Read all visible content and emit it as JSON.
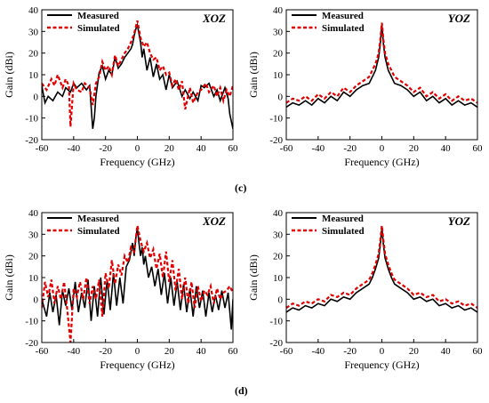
{
  "captions": {
    "c": "(c)",
    "d": "(d)"
  },
  "chart_data": [
    {
      "type": "line",
      "id": "c-xoz",
      "title": "XOZ",
      "xlabel": "Frequency (GHz)",
      "ylabel": "Gain (dBi)",
      "xlim": [
        -60,
        60
      ],
      "ylim": [
        -20,
        40
      ],
      "xticks": [
        -60,
        -40,
        -20,
        0,
        20,
        40,
        60
      ],
      "yticks": [
        -20,
        -10,
        0,
        10,
        20,
        30,
        40
      ],
      "grid": false,
      "legend": "top-left",
      "series": [
        {
          "name": "Measured",
          "color": "#000000",
          "dash": "solid",
          "x": [
            -60,
            -58,
            -56,
            -53,
            -50,
            -47,
            -45,
            -42,
            -40,
            -38,
            -35,
            -32,
            -30,
            -28,
            -27,
            -26,
            -24,
            -22,
            -20,
            -18,
            -16,
            -14,
            -12,
            -10,
            -8,
            -6,
            -4,
            -3,
            -2,
            -1,
            0,
            1,
            2,
            3,
            4,
            6,
            8,
            10,
            12,
            14,
            16,
            18,
            20,
            22,
            25,
            28,
            30,
            33,
            35,
            38,
            40,
            42,
            45,
            48,
            50,
            52,
            55,
            57,
            58,
            60
          ],
          "y": [
            5,
            -3,
            0,
            -2,
            2,
            0,
            4,
            2,
            6,
            4,
            6,
            3,
            5,
            -15,
            -10,
            0,
            11,
            14,
            8,
            12,
            10,
            18,
            13,
            15,
            18,
            20,
            22,
            24,
            28,
            31,
            33,
            29,
            25,
            18,
            22,
            12,
            18,
            9,
            15,
            8,
            10,
            3,
            10,
            4,
            7,
            0,
            3,
            -1,
            2,
            -2,
            5,
            4,
            6,
            0,
            3,
            -2,
            4,
            -1,
            -8,
            -15
          ]
        },
        {
          "name": "Simulated",
          "color": "#e00000",
          "dash": "dashed",
          "x": [
            -60,
            -57,
            -54,
            -52,
            -50,
            -47,
            -45,
            -43,
            -42,
            -40,
            -38,
            -35,
            -33,
            -30,
            -28,
            -26,
            -24,
            -22,
            -20,
            -18,
            -16,
            -14,
            -12,
            -10,
            -8,
            -6,
            -4,
            -2,
            0,
            2,
            4,
            6,
            8,
            10,
            12,
            14,
            16,
            18,
            20,
            22,
            24,
            26,
            28,
            30,
            33,
            35,
            38,
            40,
            43,
            45,
            48,
            50,
            52,
            54,
            56,
            58,
            60
          ],
          "y": [
            6,
            3,
            8,
            5,
            10,
            4,
            8,
            5,
            -14,
            6,
            3,
            2,
            6,
            4,
            -4,
            6,
            9,
            16,
            12,
            14,
            10,
            19,
            14,
            17,
            20,
            22,
            25,
            29,
            35,
            27,
            23,
            25,
            20,
            17,
            18,
            12,
            14,
            10,
            11,
            5,
            8,
            3,
            7,
            -6,
            4,
            -3,
            2,
            3,
            6,
            2,
            5,
            0,
            4,
            -2,
            3,
            0,
            5
          ]
        }
      ]
    },
    {
      "type": "line",
      "id": "c-yoz",
      "title": "YOZ",
      "xlabel": "Frequency (GHz)",
      "ylabel": "Gain (dBi)",
      "xlim": [
        -60,
        60
      ],
      "ylim": [
        -20,
        40
      ],
      "xticks": [
        -60,
        -40,
        -20,
        0,
        20,
        40,
        60
      ],
      "yticks": [
        -20,
        -10,
        0,
        10,
        20,
        30,
        40
      ],
      "grid": false,
      "legend": "top-left",
      "series": [
        {
          "name": "Measured",
          "color": "#000000",
          "dash": "solid",
          "x": [
            -60,
            -56,
            -52,
            -48,
            -44,
            -40,
            -36,
            -32,
            -28,
            -24,
            -20,
            -16,
            -12,
            -8,
            -6,
            -4,
            -2,
            -1,
            0,
            1,
            2,
            4,
            6,
            8,
            12,
            16,
            20,
            24,
            28,
            32,
            36,
            40,
            44,
            48,
            52,
            56,
            60
          ],
          "y": [
            -5,
            -3,
            -4,
            -2,
            -4,
            -1,
            -3,
            0,
            -2,
            2,
            0,
            3,
            5,
            6,
            9,
            12,
            18,
            24,
            33,
            24,
            18,
            12,
            9,
            6,
            5,
            3,
            0,
            2,
            -2,
            0,
            -3,
            -1,
            -4,
            -2,
            -4,
            -3,
            -5
          ]
        },
        {
          "name": "Simulated",
          "color": "#e00000",
          "dash": "dashed",
          "x": [
            -60,
            -56,
            -52,
            -48,
            -44,
            -40,
            -36,
            -32,
            -28,
            -24,
            -20,
            -16,
            -12,
            -8,
            -6,
            -4,
            -2,
            -1,
            0,
            1,
            2,
            4,
            6,
            8,
            12,
            16,
            20,
            24,
            28,
            32,
            36,
            40,
            44,
            48,
            52,
            56,
            60
          ],
          "y": [
            -3,
            -1,
            -2,
            0,
            -2,
            1,
            -1,
            2,
            0,
            4,
            2,
            5,
            7,
            9,
            12,
            15,
            20,
            26,
            34,
            26,
            20,
            15,
            12,
            9,
            7,
            5,
            2,
            4,
            0,
            2,
            -1,
            1,
            -2,
            0,
            -2,
            -1,
            -3
          ]
        }
      ]
    },
    {
      "type": "line",
      "id": "d-xoz",
      "title": "XOZ",
      "xlabel": "Frequency (GHz)",
      "ylabel": "Gain (dBi)",
      "xlim": [
        -60,
        60
      ],
      "ylim": [
        -20,
        40
      ],
      "xticks": [
        -60,
        -40,
        -20,
        0,
        20,
        40,
        60
      ],
      "yticks": [
        -20,
        -10,
        0,
        10,
        20,
        30,
        40
      ],
      "grid": false,
      "legend": "top-left",
      "series": [
        {
          "name": "Measured",
          "color": "#000000",
          "dash": "solid",
          "x": [
            -60,
            -57,
            -55,
            -53,
            -51,
            -49,
            -47,
            -45,
            -43,
            -41,
            -39,
            -37,
            -35,
            -33,
            -31,
            -29,
            -27,
            -25,
            -23,
            -21,
            -19,
            -17,
            -15,
            -13,
            -11,
            -9,
            -7,
            -5,
            -4,
            -3,
            -2,
            -1,
            0,
            1,
            2,
            3,
            4,
            5,
            7,
            9,
            11,
            13,
            15,
            17,
            19,
            21,
            23,
            25,
            27,
            29,
            31,
            33,
            35,
            37,
            39,
            41,
            43,
            45,
            47,
            49,
            51,
            53,
            55,
            57,
            59,
            60
          ],
          "y": [
            0,
            -8,
            3,
            -6,
            2,
            -12,
            4,
            -3,
            5,
            -5,
            8,
            -6,
            3,
            -4,
            9,
            -10,
            6,
            -8,
            10,
            -7,
            9,
            -5,
            12,
            -3,
            10,
            -2,
            15,
            18,
            22,
            26,
            20,
            28,
            33,
            26,
            20,
            24,
            16,
            20,
            10,
            15,
            6,
            14,
            2,
            12,
            -2,
            10,
            -3,
            8,
            -5,
            7,
            -6,
            5,
            -8,
            6,
            -4,
            4,
            -8,
            3,
            -6,
            2,
            -5,
            4,
            -4,
            3,
            -14,
            0
          ]
        },
        {
          "name": "Simulated",
          "color": "#e00000",
          "dash": "dashed",
          "x": [
            -60,
            -58,
            -56,
            -54,
            -52,
            -50,
            -48,
            -46,
            -44,
            -42,
            -40,
            -38,
            -36,
            -34,
            -32,
            -30,
            -28,
            -26,
            -24,
            -22,
            -20,
            -18,
            -16,
            -14,
            -12,
            -10,
            -8,
            -6,
            -4,
            -2,
            0,
            2,
            4,
            6,
            8,
            10,
            12,
            14,
            16,
            18,
            20,
            22,
            24,
            26,
            28,
            30,
            32,
            34,
            36,
            38,
            40,
            42,
            44,
            46,
            48,
            50,
            52,
            54,
            56,
            58,
            60
          ],
          "y": [
            -4,
            8,
            1,
            9,
            -2,
            6,
            0,
            8,
            -5,
            -20,
            5,
            1,
            8,
            0,
            10,
            -2,
            6,
            0,
            9,
            -8,
            12,
            5,
            18,
            7,
            16,
            11,
            20,
            17,
            24,
            22,
            34,
            27,
            22,
            26,
            19,
            23,
            14,
            21,
            10,
            22,
            8,
            18,
            4,
            14,
            0,
            10,
            -2,
            8,
            -4,
            6,
            -1,
            4,
            2,
            6,
            -2,
            5,
            0,
            3,
            4,
            6,
            3
          ]
        }
      ]
    },
    {
      "type": "line",
      "id": "d-yoz",
      "title": "YOZ",
      "xlabel": "Frequency (GHz)",
      "ylabel": "Gain (dBi)",
      "xlim": [
        -60,
        60
      ],
      "ylim": [
        -20,
        40
      ],
      "xticks": [
        -60,
        -40,
        -20,
        0,
        20,
        40,
        60
      ],
      "yticks": [
        -20,
        -10,
        0,
        10,
        20,
        30,
        40
      ],
      "grid": false,
      "legend": "top-left",
      "series": [
        {
          "name": "Measured",
          "color": "#000000",
          "dash": "solid",
          "x": [
            -60,
            -56,
            -52,
            -48,
            -44,
            -40,
            -36,
            -32,
            -28,
            -24,
            -20,
            -16,
            -12,
            -8,
            -6,
            -4,
            -2,
            -1,
            0,
            1,
            2,
            4,
            6,
            8,
            12,
            16,
            20,
            24,
            28,
            32,
            36,
            40,
            44,
            48,
            52,
            56,
            60
          ],
          "y": [
            -6,
            -4,
            -5,
            -3,
            -4,
            -2,
            -3,
            0,
            -1,
            1,
            0,
            3,
            5,
            7,
            10,
            14,
            19,
            25,
            33,
            25,
            19,
            14,
            10,
            7,
            5,
            3,
            0,
            1,
            -1,
            0,
            -3,
            -2,
            -4,
            -3,
            -5,
            -4,
            -6
          ]
        },
        {
          "name": "Simulated",
          "color": "#e00000",
          "dash": "dashed",
          "x": [
            -60,
            -56,
            -52,
            -48,
            -44,
            -40,
            -36,
            -32,
            -28,
            -24,
            -20,
            -16,
            -12,
            -8,
            -6,
            -4,
            -2,
            -1,
            0,
            1,
            2,
            4,
            6,
            8,
            12,
            16,
            20,
            24,
            28,
            32,
            36,
            40,
            44,
            48,
            52,
            56,
            60
          ],
          "y": [
            -4,
            -2,
            -3,
            -1,
            -2,
            0,
            -1,
            2,
            1,
            3,
            2,
            5,
            7,
            9,
            12,
            16,
            21,
            27,
            34,
            27,
            21,
            16,
            12,
            9,
            7,
            5,
            2,
            3,
            1,
            2,
            -1,
            0,
            -2,
            -1,
            -3,
            -2,
            -4
          ]
        }
      ]
    }
  ]
}
